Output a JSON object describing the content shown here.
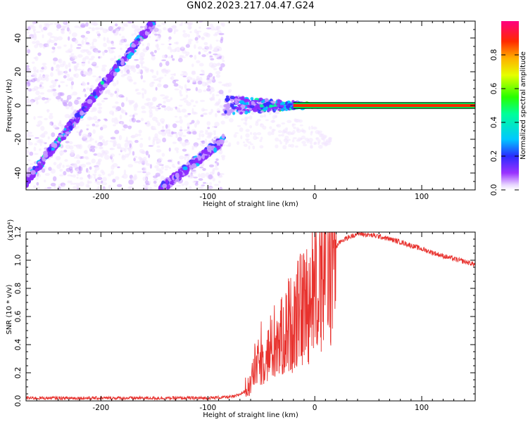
{
  "title": "GN02.2023.217.04.47.G24",
  "colors": {
    "snr_line": "#e8322e",
    "axis": "#000000"
  },
  "chart_data": [
    {
      "type": "heatmap",
      "xlabel": "Height of straight line (km)",
      "ylabel": "Frequency (Hz)",
      "xlim": [
        -270,
        150
      ],
      "ylim": [
        -50,
        50
      ],
      "xticks": [
        -200,
        -100,
        0,
        100
      ],
      "yticks": [
        -40,
        -20,
        0,
        20,
        40
      ],
      "colorbar": {
        "label": "Normalized spectral amplitude",
        "range": [
          0.0,
          1.0
        ],
        "ticks": [
          "0.0",
          "0.2",
          "0.4",
          "0.6",
          "0.8"
        ]
      },
      "features": [
        {
          "name": "diagonal-band-1",
          "x": [
            -270,
            -150
          ],
          "y": [
            -45,
            50
          ]
        },
        {
          "name": "diagonal-band-2",
          "x": [
            -145,
            -85
          ],
          "y": [
            -50,
            -20
          ]
        },
        {
          "name": "converging-band",
          "x": [
            -85,
            10
          ],
          "y_center": 0
        },
        {
          "name": "horizontal-line",
          "x": [
            -20,
            150
          ],
          "y": 0
        }
      ]
    },
    {
      "type": "line",
      "xlabel": "Height of straight line (km)",
      "ylabel": "SNR (10 * v/v)",
      "scale_label": "(x10⁴)",
      "xlim": [
        -270,
        150
      ],
      "ylim": [
        0,
        1.2
      ],
      "xticks": [
        -200,
        -100,
        0,
        100
      ],
      "yticks": [
        "0.0",
        "0.2",
        "0.4",
        "0.6",
        "0.8",
        "1.0",
        "1.2"
      ],
      "series_envelope": {
        "x": [
          -270,
          -200,
          -100,
          -75,
          -62,
          -55,
          -45,
          -35,
          -25,
          -15,
          -5,
          5,
          15,
          25,
          40,
          60,
          80,
          100,
          120,
          150
        ],
        "y": [
          0.02,
          0.02,
          0.02,
          0.03,
          0.08,
          0.25,
          0.32,
          0.4,
          0.52,
          0.62,
          0.72,
          0.9,
          1.05,
          1.14,
          1.19,
          1.17,
          1.13,
          1.08,
          1.03,
          0.97
        ]
      }
    }
  ]
}
